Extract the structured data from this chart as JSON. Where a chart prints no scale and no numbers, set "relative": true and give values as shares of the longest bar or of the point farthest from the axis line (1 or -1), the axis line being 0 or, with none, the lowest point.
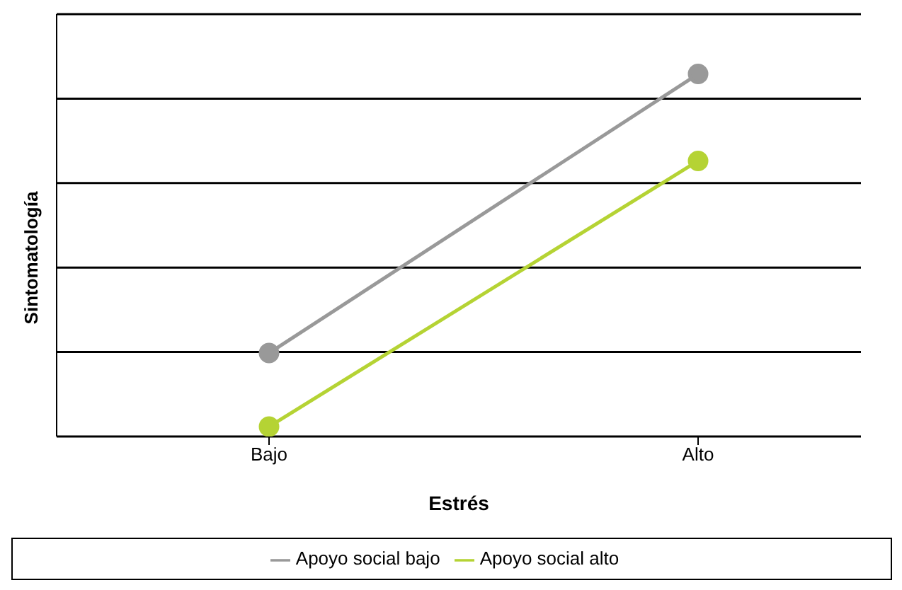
{
  "chart_data": {
    "type": "line",
    "xlabel": "Estrés",
    "ylabel": "Sintomatología",
    "categories": [
      "Bajo",
      "Alto"
    ],
    "relative": true,
    "grid": "y",
    "legend": "bottom",
    "marker": "circle",
    "line_style": "solid",
    "series": [
      {
        "name": "Apoyo social bajo",
        "color": "#999999",
        "values": [
          0.23,
          1
        ]
      },
      {
        "name": "Apoyo social alto",
        "color": "#b5d334",
        "values": [
          0.027,
          0.76
        ]
      }
    ]
  }
}
